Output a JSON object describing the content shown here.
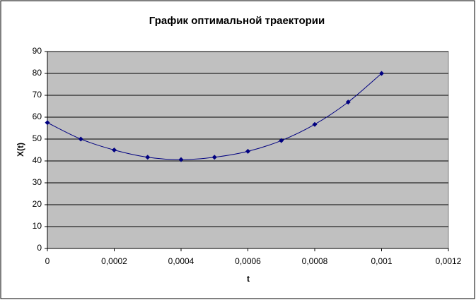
{
  "chart_data": {
    "type": "line",
    "title": "График оптимальной траектории",
    "x_label": "t",
    "y_label": "X(t)",
    "x": [
      0,
      0.0001,
      0.0002,
      0.0003,
      0.0004,
      0.0005,
      0.0006,
      0.0007,
      0.0008,
      0.0009,
      0.001
    ],
    "series": [
      {
        "name": "X(t)",
        "color": "#000080",
        "values": [
          57.5,
          50,
          45,
          41.7,
          40.6,
          41.7,
          44.4,
          49.3,
          56.7,
          66.9,
          80
        ]
      }
    ],
    "xlim": [
      0,
      0.0012
    ],
    "xticks": [
      0,
      {
        "value": 0.0002,
        "label": "0,0002"
      },
      {
        "value": 0.0004,
        "label": "0,0004"
      },
      {
        "value": 0.0006,
        "label": "0,0006"
      },
      {
        "value": 0.0008,
        "label": "0,0008"
      },
      {
        "value": 0.001,
        "label": "0,001"
      },
      {
        "value": 0.0012,
        "label": "0,0012"
      }
    ],
    "ylim": [
      0,
      90
    ],
    "yticks": [
      0,
      10,
      20,
      30,
      40,
      50,
      60,
      70,
      80,
      90
    ],
    "grid": true,
    "plot_background": "#c0c0c0"
  }
}
